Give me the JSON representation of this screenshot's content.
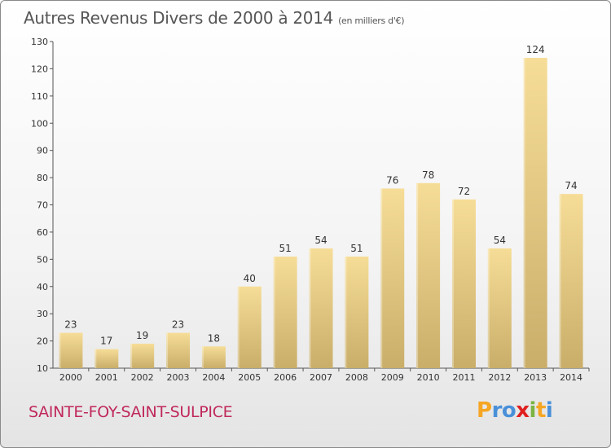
{
  "title": "Autres Revenus Divers de 2000 à 2014",
  "title_unit": "(en milliers d'€)",
  "location": "SAINTE-FOY-SAINT-SULPICE",
  "logo": {
    "letters": [
      "P",
      "r",
      "o",
      "x",
      "i",
      "t",
      "i"
    ],
    "colors": [
      "#f5a623",
      "#4a90d9",
      "#4a90d9",
      "#e02020",
      "#7cb342",
      "#f5a623",
      "#4a90d9"
    ]
  },
  "chart_data": {
    "type": "bar",
    "categories": [
      "2000",
      "2001",
      "2002",
      "2003",
      "2004",
      "2005",
      "2006",
      "2007",
      "2008",
      "2009",
      "2010",
      "2011",
      "2012",
      "2013",
      "2014"
    ],
    "values": [
      23,
      17,
      19,
      23,
      18,
      40,
      51,
      54,
      51,
      76,
      78,
      72,
      54,
      124,
      74
    ],
    "ylim": [
      10,
      130
    ],
    "yticks": [
      10,
      20,
      30,
      40,
      50,
      60,
      70,
      80,
      90,
      100,
      110,
      120,
      130
    ],
    "grid": false,
    "bar_color_top": "#f6dd97",
    "bar_color_bottom": "#c9ae6a"
  }
}
